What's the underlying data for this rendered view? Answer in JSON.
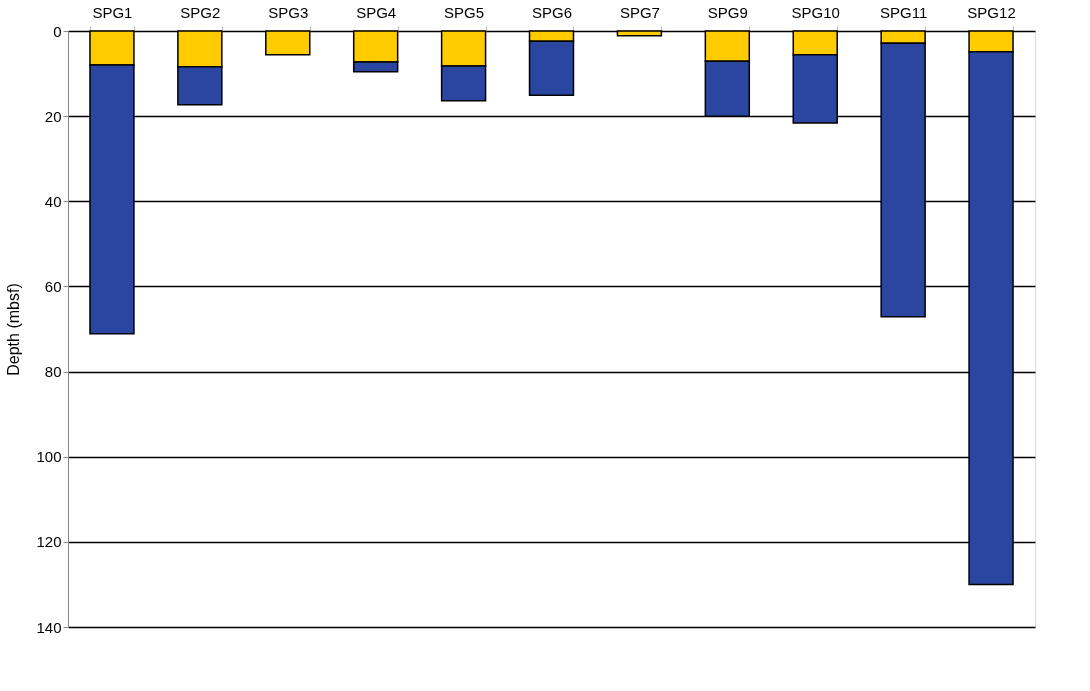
{
  "chart_data": {
    "type": "bar",
    "stacked": true,
    "ylabel": "Depth (mbsf)",
    "categories": [
      "SPG1",
      "SPG2",
      "SPG3",
      "SPG4",
      "SPG5",
      "SPG6",
      "SPG7",
      "SPG9",
      "SPG10",
      "SPG11",
      "SPG12"
    ],
    "series": [
      {
        "color": "#ffcc00",
        "values": [
          8,
          8.4,
          5.6,
          7.3,
          8.2,
          2.4,
          1.1,
          7.1,
          5.6,
          2.9,
          4.9
        ]
      },
      {
        "color": "#2a46a0",
        "values": [
          63.1,
          8.9,
          null,
          2.3,
          8.2,
          12.7,
          null,
          12.9,
          16,
          64.2,
          125.1
        ]
      }
    ],
    "ylim": [
      140,
      0
    ],
    "yticks": [
      0,
      20,
      40,
      60,
      80,
      100,
      120,
      140
    ],
    "grid": "y"
  }
}
